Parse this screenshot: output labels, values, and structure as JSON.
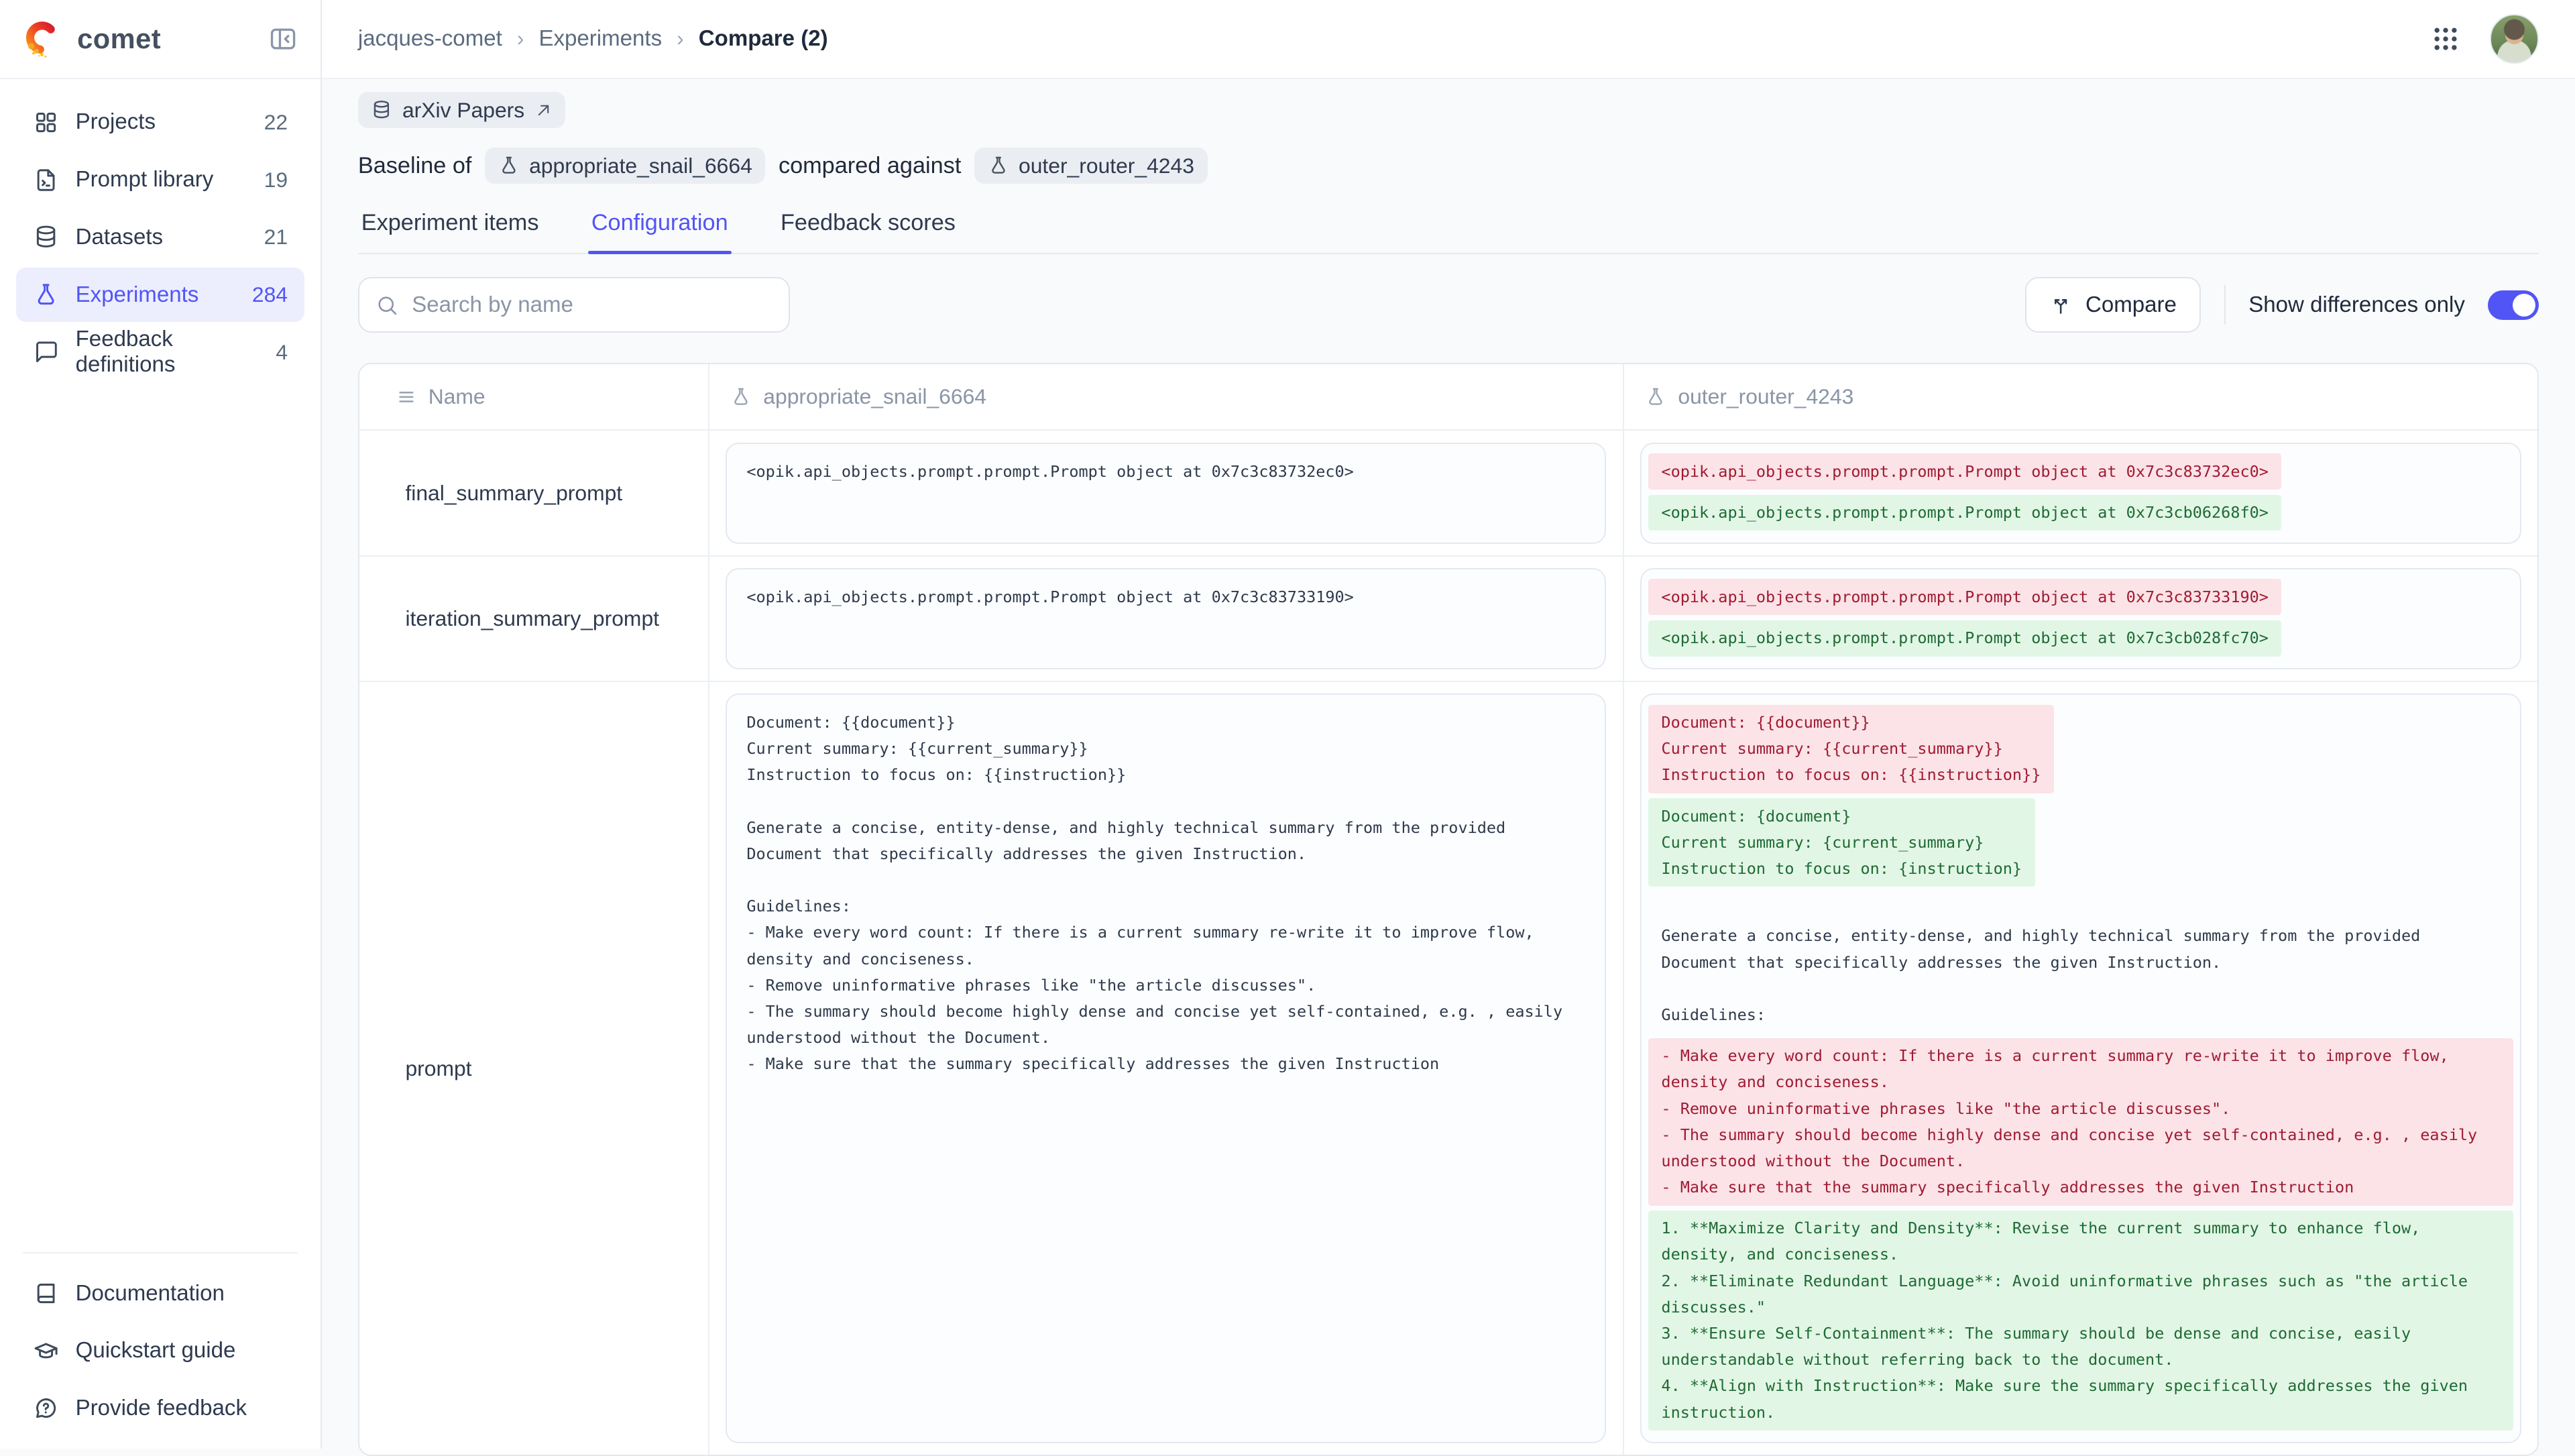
{
  "colors": {
    "accent": "#5155F5",
    "removed_bg": "#FBE3E7",
    "removed_text": "#A01B33",
    "added_bg": "#E2F6E6",
    "added_text": "#1E6B33"
  },
  "sidebar": {
    "brand": "comet",
    "items": [
      {
        "label": "Projects",
        "count": "22",
        "icon": "grid",
        "active": false
      },
      {
        "label": "Prompt library",
        "count": "19",
        "icon": "file-terminal",
        "active": false
      },
      {
        "label": "Datasets",
        "count": "21",
        "icon": "database",
        "active": false
      },
      {
        "label": "Experiments",
        "count": "284",
        "icon": "flask",
        "active": true
      },
      {
        "label": "Feedback definitions",
        "count": "4",
        "icon": "message",
        "active": false
      }
    ],
    "footer_items": [
      {
        "label": "Documentation",
        "icon": "book"
      },
      {
        "label": "Quickstart guide",
        "icon": "grad-cap"
      },
      {
        "label": "Provide feedback",
        "icon": "help-bubble"
      }
    ]
  },
  "header": {
    "breadcrumb": [
      "jacques-comet",
      "Experiments",
      "Compare (2)"
    ]
  },
  "page": {
    "dataset_chip": "arXiv Papers",
    "baseline_label": "Baseline of",
    "baseline_experiment": "appropriate_snail_6664",
    "compared_label": "compared against",
    "compare_experiment": "outer_router_4243",
    "tabs": [
      {
        "label": "Experiment items",
        "active": false
      },
      {
        "label": "Configuration",
        "active": true
      },
      {
        "label": "Feedback scores",
        "active": false
      }
    ],
    "search_placeholder": "Search by name",
    "compare_button": "Compare",
    "differences_toggle": {
      "label": "Show differences only",
      "on": true
    }
  },
  "table": {
    "columns": [
      {
        "label": "Name",
        "icon": "rows"
      },
      {
        "label": "appropriate_snail_6664",
        "icon": "flask"
      },
      {
        "label": "outer_router_4243",
        "icon": "flask"
      }
    ],
    "rows": [
      {
        "name": "final_summary_prompt",
        "baseline_blocks": [
          {
            "type": "plain",
            "text": "<opik.api_objects.prompt.prompt.Prompt object at 0x7c3c83732ec0>"
          }
        ],
        "compare_blocks": [
          {
            "type": "removed",
            "text": "<opik.api_objects.prompt.prompt.Prompt object at 0x7c3c83732ec0>"
          },
          {
            "type": "added",
            "text": "<opik.api_objects.prompt.prompt.Prompt object at 0x7c3cb06268f0>"
          }
        ]
      },
      {
        "name": "iteration_summary_prompt",
        "baseline_blocks": [
          {
            "type": "plain",
            "text": "<opik.api_objects.prompt.prompt.Prompt object at 0x7c3c83733190>"
          }
        ],
        "compare_blocks": [
          {
            "type": "removed",
            "text": "<opik.api_objects.prompt.prompt.Prompt object at 0x7c3c83733190>"
          },
          {
            "type": "added",
            "text": "<opik.api_objects.prompt.prompt.Prompt object at 0x7c3cb028fc70>"
          }
        ]
      },
      {
        "name": "prompt",
        "baseline_blocks": [
          {
            "type": "plain",
            "text": "Document: {{document}}\nCurrent summary: {{current_summary}}\nInstruction to focus on: {{instruction}}\n\nGenerate a concise, entity-dense, and highly technical summary from the provided Document that specifically addresses the given Instruction.\n\nGuidelines:\n- Make every word count: If there is a current summary re-write it to improve flow, density and conciseness.\n- Remove uninformative phrases like \"the article discusses\".\n- The summary should become highly dense and concise yet self-contained, e.g. , easily understood without the Document.\n- Make sure that the summary specifically addresses the given Instruction"
          }
        ],
        "compare_blocks": [
          {
            "type": "removed",
            "text": "Document: {{document}}\nCurrent summary: {{current_summary}}\nInstruction to focus on: {{instruction}}"
          },
          {
            "type": "added",
            "text": "Document: {document}\nCurrent summary: {current_summary}\nInstruction to focus on: {instruction}"
          },
          {
            "type": "plain",
            "text": "\nGenerate a concise, entity-dense, and highly technical summary from the provided Document that specifically addresses the given Instruction.\n\nGuidelines:"
          },
          {
            "type": "removed",
            "text": "- Make every word count: If there is a current summary re-write it to improve flow, density and conciseness.\n- Remove uninformative phrases like \"the article discusses\".\n- The summary should become highly dense and concise yet self-contained, e.g. , easily understood without the Document.\n- Make sure that the summary specifically addresses the given Instruction"
          },
          {
            "type": "added",
            "text": "1. **Maximize Clarity and Density**: Revise the current summary to enhance flow, density, and conciseness.\n2. **Eliminate Redundant Language**: Avoid uninformative phrases such as \"the article discusses.\"\n3. **Ensure Self-Containment**: The summary should be dense and concise, easily understandable without referring back to the document.\n4. **Align with Instruction**: Make sure the summary specifically addresses the given instruction."
          }
        ]
      }
    ]
  }
}
